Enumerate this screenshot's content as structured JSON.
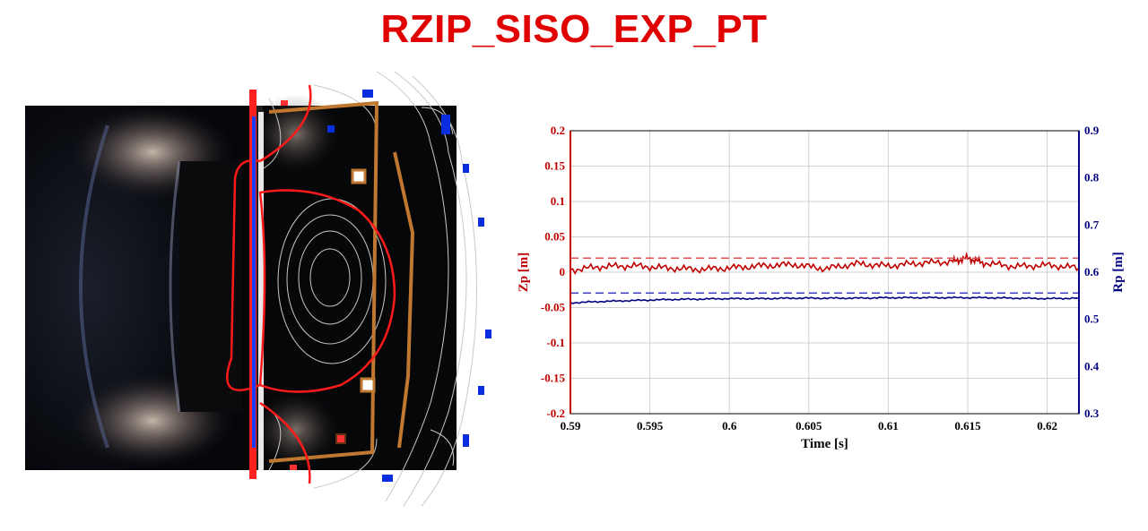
{
  "title": "RZIP_SISO_EXP_PT",
  "colors": {
    "title": "#e00000",
    "zp": "#c00000",
    "zp_ref": "#e05050",
    "rp": "#000080",
    "rp_ref": "#4040c0",
    "grid": "#d0d0d0"
  },
  "photo": {
    "description_icon": "tokamak-cross-section-overlay",
    "overlay_colors": {
      "plasma_boundary": "#ff1a1a",
      "flux_contours": "#c8c8c8",
      "coil_blue": "#0a2de0",
      "wall": "#c07830"
    }
  },
  "chart_data": {
    "type": "line",
    "xlabel": "Time [s]",
    "ylabel_left": "Zp [m]",
    "ylabel_right": "Rp [m]",
    "xlim": [
      0.59,
      0.622
    ],
    "ylim_left": [
      -0.2,
      0.2
    ],
    "ylim_right": [
      0.3,
      0.9
    ],
    "xticks": [
      "0.59",
      "0.595",
      "0.6",
      "0.605",
      "0.61",
      "0.615",
      "0.62"
    ],
    "yticks_left": [
      "0.2",
      "0.15",
      "0.1",
      "0.05",
      "0",
      "-0.05",
      "-0.1",
      "-0.15",
      "-0.2"
    ],
    "yticks_right": [
      "0.9",
      "0.8",
      "0.7",
      "0.6",
      "0.5",
      "0.4",
      "0.3"
    ],
    "grid": true,
    "series": [
      {
        "axis": "left",
        "style": "solid",
        "x": [
          0.59,
          0.592,
          0.594,
          0.596,
          0.598,
          0.6,
          0.602,
          0.604,
          0.606,
          0.608,
          0.61,
          0.612,
          0.614,
          0.615,
          0.616,
          0.618,
          0.62,
          0.622
        ],
        "values": [
          0.003,
          0.008,
          0.009,
          0.006,
          0.004,
          0.006,
          0.009,
          0.011,
          0.005,
          0.012,
          0.009,
          0.013,
          0.015,
          0.02,
          0.013,
          0.008,
          0.01,
          0.006
        ]
      },
      {
        "axis": "left",
        "style": "dashed",
        "x": [
          0.59,
          0.622
        ],
        "values": [
          0.02,
          0.02
        ]
      },
      {
        "axis": "right",
        "style": "solid",
        "x": [
          0.59,
          0.592,
          0.594,
          0.596,
          0.598,
          0.6,
          0.602,
          0.604,
          0.606,
          0.608,
          0.61,
          0.612,
          0.614,
          0.616,
          0.618,
          0.62,
          0.622
        ],
        "values": [
          0.535,
          0.538,
          0.54,
          0.542,
          0.543,
          0.544,
          0.544,
          0.545,
          0.545,
          0.545,
          0.546,
          0.546,
          0.546,
          0.546,
          0.545,
          0.544,
          0.545
        ]
      },
      {
        "axis": "right",
        "style": "dashed",
        "x": [
          0.59,
          0.622
        ],
        "values": [
          0.556,
          0.556
        ]
      }
    ]
  }
}
